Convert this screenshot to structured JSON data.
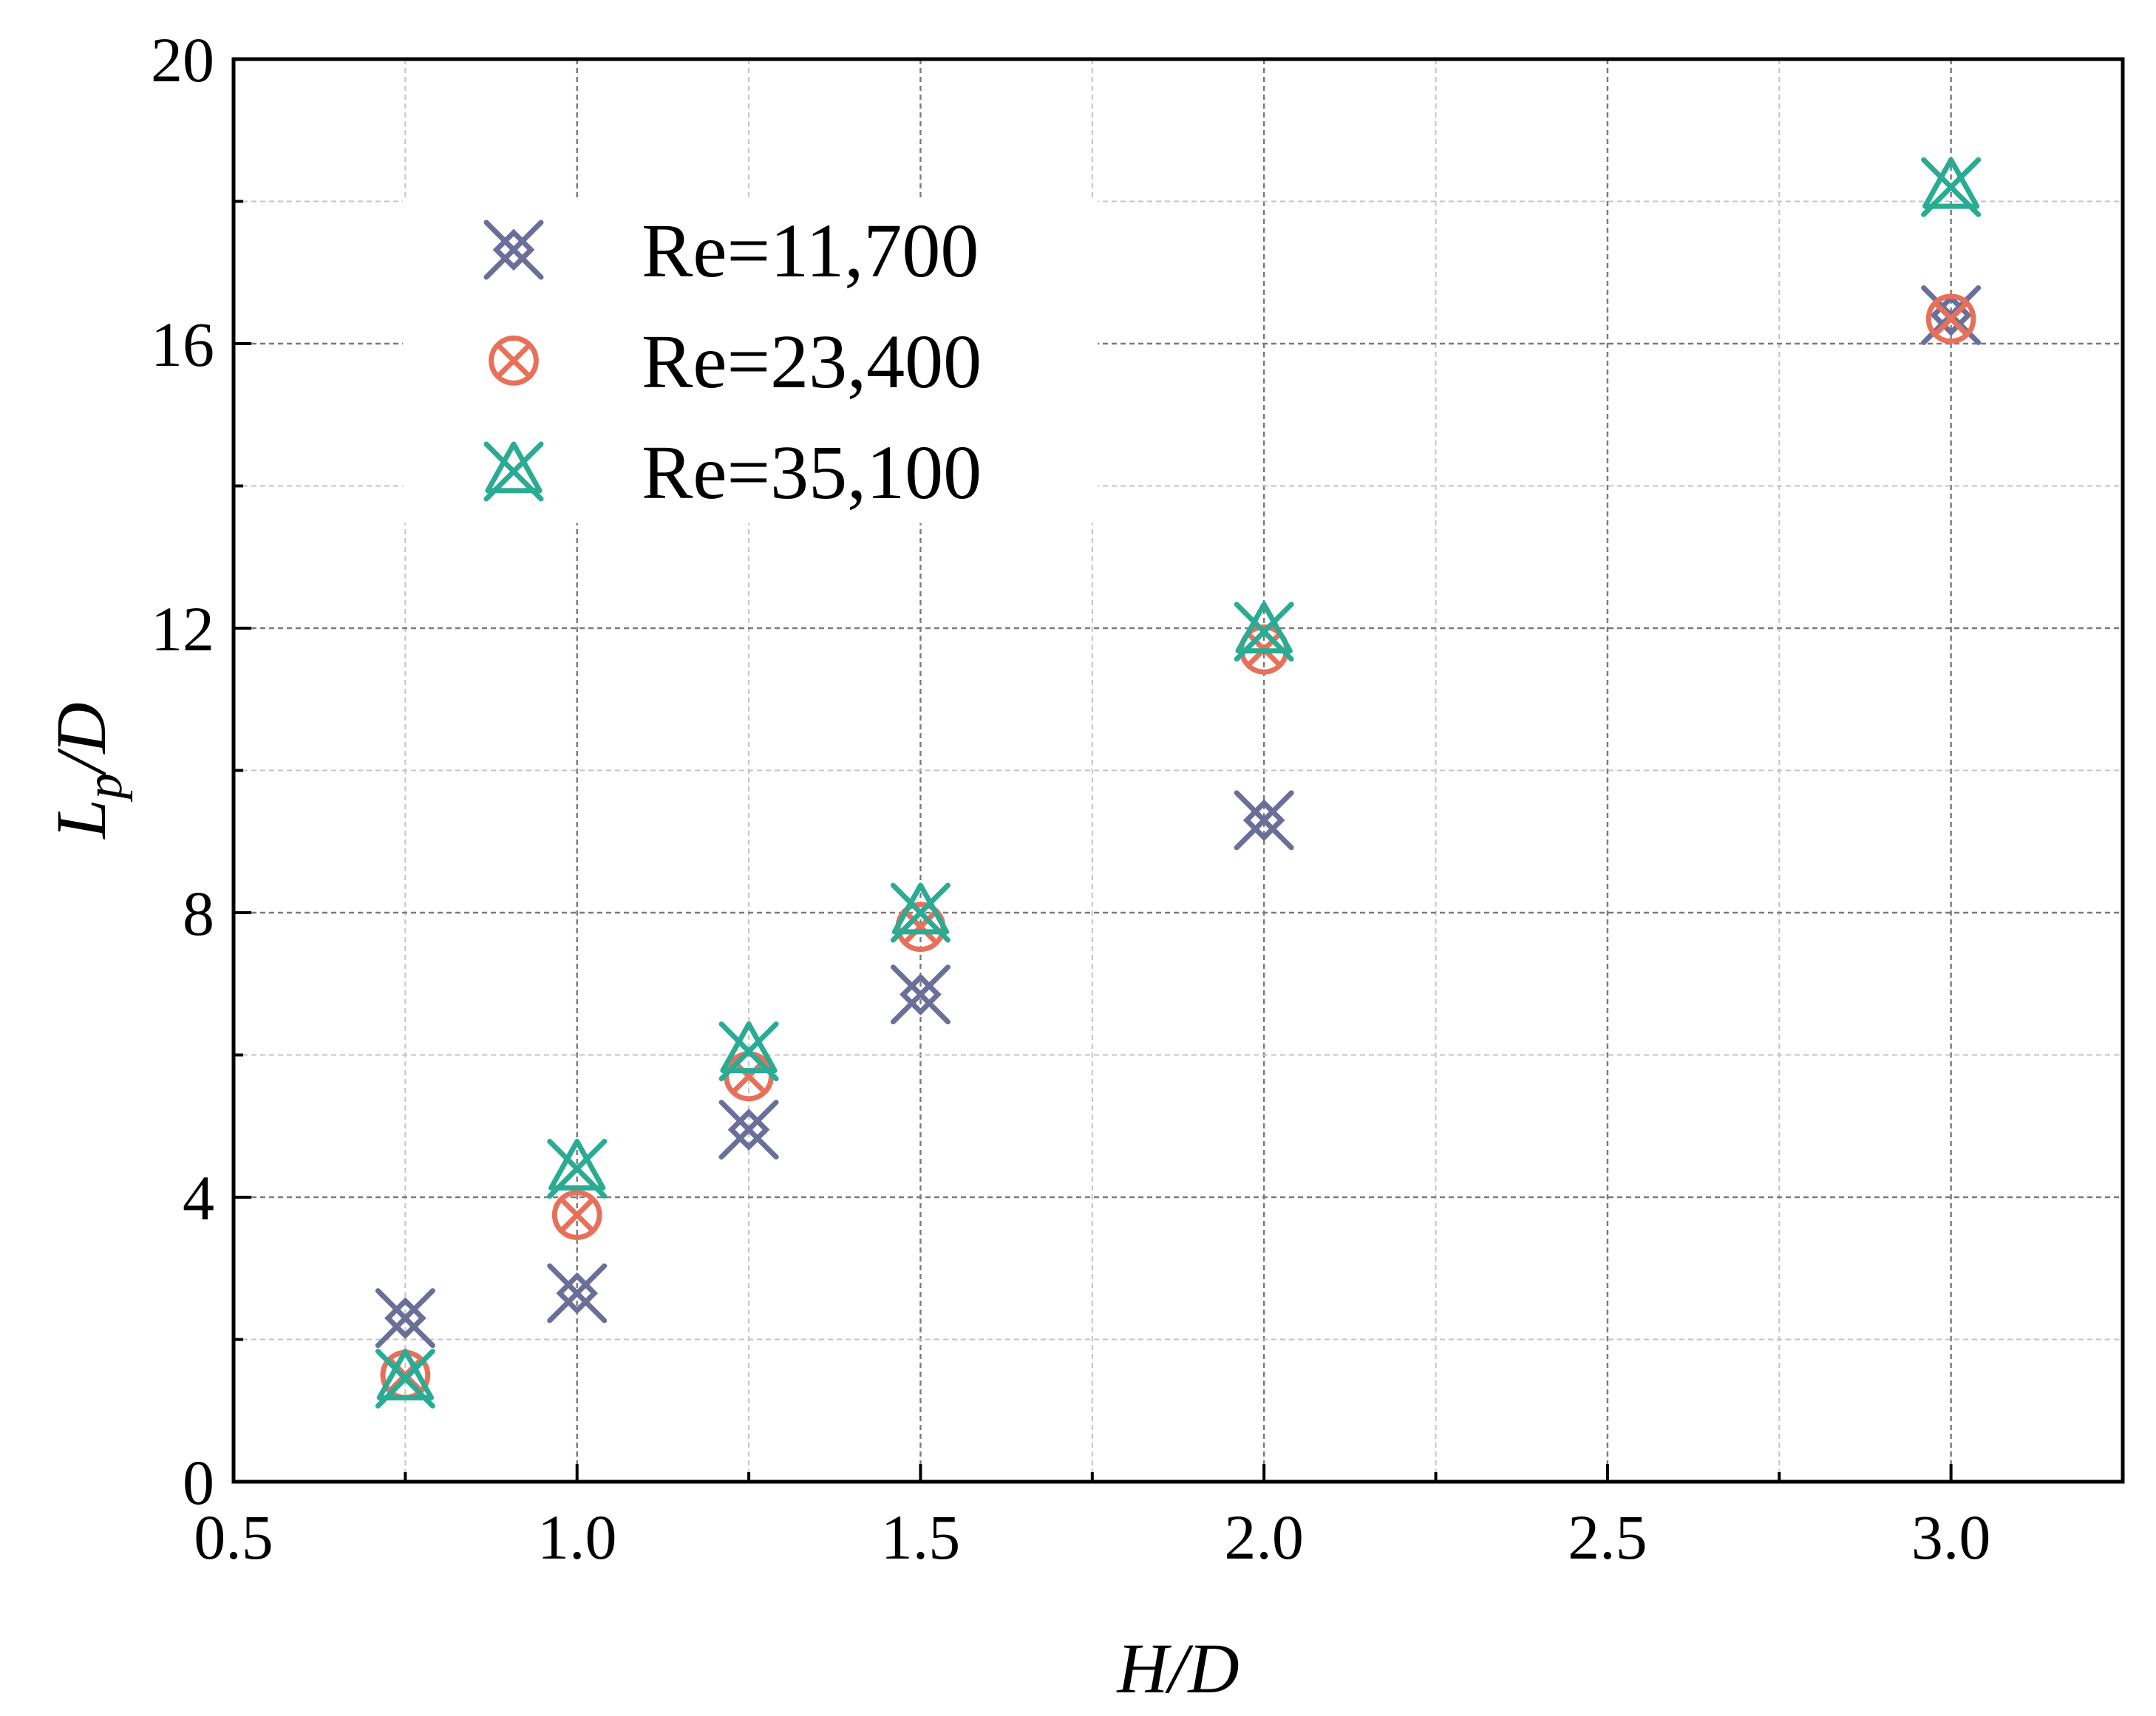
{
  "chart_data": {
    "type": "scatter",
    "title": "",
    "xlabel": "H/D",
    "ylabel": {
      "base": "L",
      "subscript": "p",
      "suffix": "/D"
    },
    "xlim": [
      0.5,
      3.25
    ],
    "ylim": [
      0,
      20
    ],
    "xticks": [
      0.5,
      1.0,
      1.5,
      2.0,
      2.5,
      3.0
    ],
    "xtick_labels": [
      "0.5",
      "1.0",
      "1.5",
      "2.0",
      "2.5",
      "3.0"
    ],
    "xminor": [
      0.75,
      1.25,
      1.75,
      2.25,
      2.75
    ],
    "yticks": [
      0,
      4,
      8,
      12,
      16,
      20
    ],
    "ytick_labels": [
      "0",
      "4",
      "8",
      "12",
      "16",
      "20"
    ],
    "yminor": [
      2,
      6,
      10,
      14,
      18
    ],
    "grid": true,
    "legend_position": "upper-left",
    "series": [
      {
        "name": "Re=11,700",
        "marker": "circle-x-cross",
        "color": "#6a6f9a",
        "x": [
          0.75,
          1.0,
          1.25,
          1.5,
          2.0,
          3.0
        ],
        "y": [
          2.3,
          2.65,
          4.95,
          6.85,
          9.3,
          16.4
        ]
      },
      {
        "name": "Re=23,400",
        "marker": "circle-x",
        "color": "#e8705a",
        "x": [
          0.75,
          1.0,
          1.25,
          1.5,
          2.0,
          3.0
        ],
        "y": [
          1.5,
          3.75,
          5.7,
          7.8,
          11.7,
          16.35
        ]
      },
      {
        "name": "Re=35,100",
        "marker": "triangle-x",
        "color": "#2aab93",
        "x": [
          0.75,
          1.0,
          1.25,
          1.5,
          2.0,
          3.0
        ],
        "y": [
          1.45,
          4.4,
          6.05,
          8.0,
          11.95,
          18.2
        ]
      }
    ]
  }
}
